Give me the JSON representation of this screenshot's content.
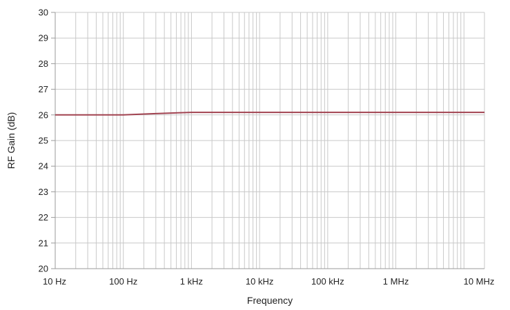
{
  "chart_data": {
    "type": "line",
    "title": "",
    "xlabel": "Frequency",
    "ylabel": "RF Gain (dB)",
    "x_scale": "log",
    "xlim": [
      10,
      20000000
    ],
    "ylim": [
      20,
      30
    ],
    "grid": true,
    "x_ticks": [
      {
        "value": 10,
        "label": "10 Hz"
      },
      {
        "value": 100,
        "label": "100 Hz"
      },
      {
        "value": 1000,
        "label": "1 kHz"
      },
      {
        "value": 10000,
        "label": "10 kHz"
      },
      {
        "value": 100000,
        "label": "100 kHz"
      },
      {
        "value": 1000000,
        "label": "1 MHz"
      },
      {
        "value": 10000000,
        "label": "10 MHz"
      }
    ],
    "y_ticks": [
      {
        "value": 20,
        "label": "20"
      },
      {
        "value": 21,
        "label": "21"
      },
      {
        "value": 22,
        "label": "22"
      },
      {
        "value": 23,
        "label": "23"
      },
      {
        "value": 24,
        "label": "24"
      },
      {
        "value": 25,
        "label": "25"
      },
      {
        "value": 26,
        "label": "26"
      },
      {
        "value": 27,
        "label": "27"
      },
      {
        "value": 28,
        "label": "28"
      },
      {
        "value": 29,
        "label": "29"
      },
      {
        "value": 30,
        "label": "30"
      }
    ],
    "series": [
      {
        "color": "#a0414f",
        "points": [
          {
            "x": 10,
            "y": 26.0
          },
          {
            "x": 100,
            "y": 26.0
          },
          {
            "x": 300,
            "y": 26.05
          },
          {
            "x": 1000,
            "y": 26.1
          },
          {
            "x": 10000,
            "y": 26.1
          },
          {
            "x": 100000,
            "y": 26.1
          },
          {
            "x": 1000000,
            "y": 26.1
          },
          {
            "x": 10000000,
            "y": 26.1
          },
          {
            "x": 20000000,
            "y": 26.1
          }
        ]
      }
    ],
    "colors": {
      "grid": "#c8c8c8",
      "axis": "#9a9a9a",
      "line": "#a0414f"
    }
  }
}
